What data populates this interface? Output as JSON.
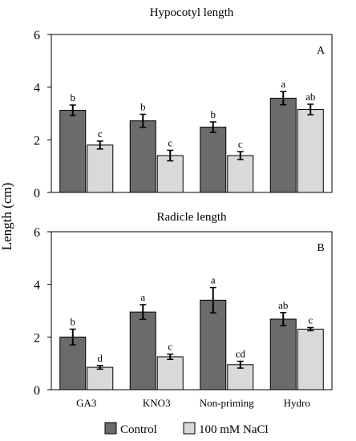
{
  "figure": {
    "ylabel": "Length (cm)",
    "legend": [
      {
        "name": "Control",
        "color": "#6b6b6b"
      },
      {
        "name": "100 mM NaCl",
        "color": "#d9d9d9"
      }
    ]
  },
  "chart_data": [
    {
      "type": "bar",
      "title": "Hypocotyl  length",
      "panel_label": "A",
      "categories": [
        "GA3",
        "KNO3",
        "Non-priming",
        "Hydro"
      ],
      "ylim": [
        0,
        6
      ],
      "yticks": [
        0,
        2,
        4,
        6
      ],
      "grid": false,
      "legend_position": "bottom",
      "series": [
        {
          "name": "Control",
          "color": "#6b6b6b",
          "values": [
            3.12,
            2.72,
            2.48,
            3.58
          ],
          "errors": [
            0.2,
            0.25,
            0.2,
            0.25
          ],
          "labels": [
            "b",
            "b",
            "b",
            "a"
          ]
        },
        {
          "name": "100 mM NaCl",
          "color": "#d9d9d9",
          "values": [
            1.8,
            1.4,
            1.4,
            3.15
          ],
          "errors": [
            0.15,
            0.2,
            0.15,
            0.2
          ],
          "labels": [
            "c",
            "c",
            "c",
            "ab"
          ]
        }
      ]
    },
    {
      "type": "bar",
      "title": "Radicle  length",
      "panel_label": "B",
      "categories": [
        "GA3",
        "KNO3",
        "Non-priming",
        "Hydro"
      ],
      "ylim": [
        0,
        6
      ],
      "yticks": [
        0,
        2,
        4,
        6
      ],
      "grid": false,
      "legend_position": "bottom",
      "series": [
        {
          "name": "Control",
          "color": "#6b6b6b",
          "values": [
            2.0,
            2.95,
            3.4,
            2.68
          ],
          "errors": [
            0.3,
            0.28,
            0.48,
            0.25
          ],
          "labels": [
            "b",
            "a",
            "a",
            "ab"
          ]
        },
        {
          "name": "100 mM NaCl",
          "color": "#d9d9d9",
          "values": [
            0.85,
            1.25,
            0.95,
            2.3
          ],
          "errors": [
            0.07,
            0.1,
            0.13,
            0.06
          ],
          "labels": [
            "d",
            "c",
            "cd",
            "c"
          ]
        }
      ]
    }
  ]
}
